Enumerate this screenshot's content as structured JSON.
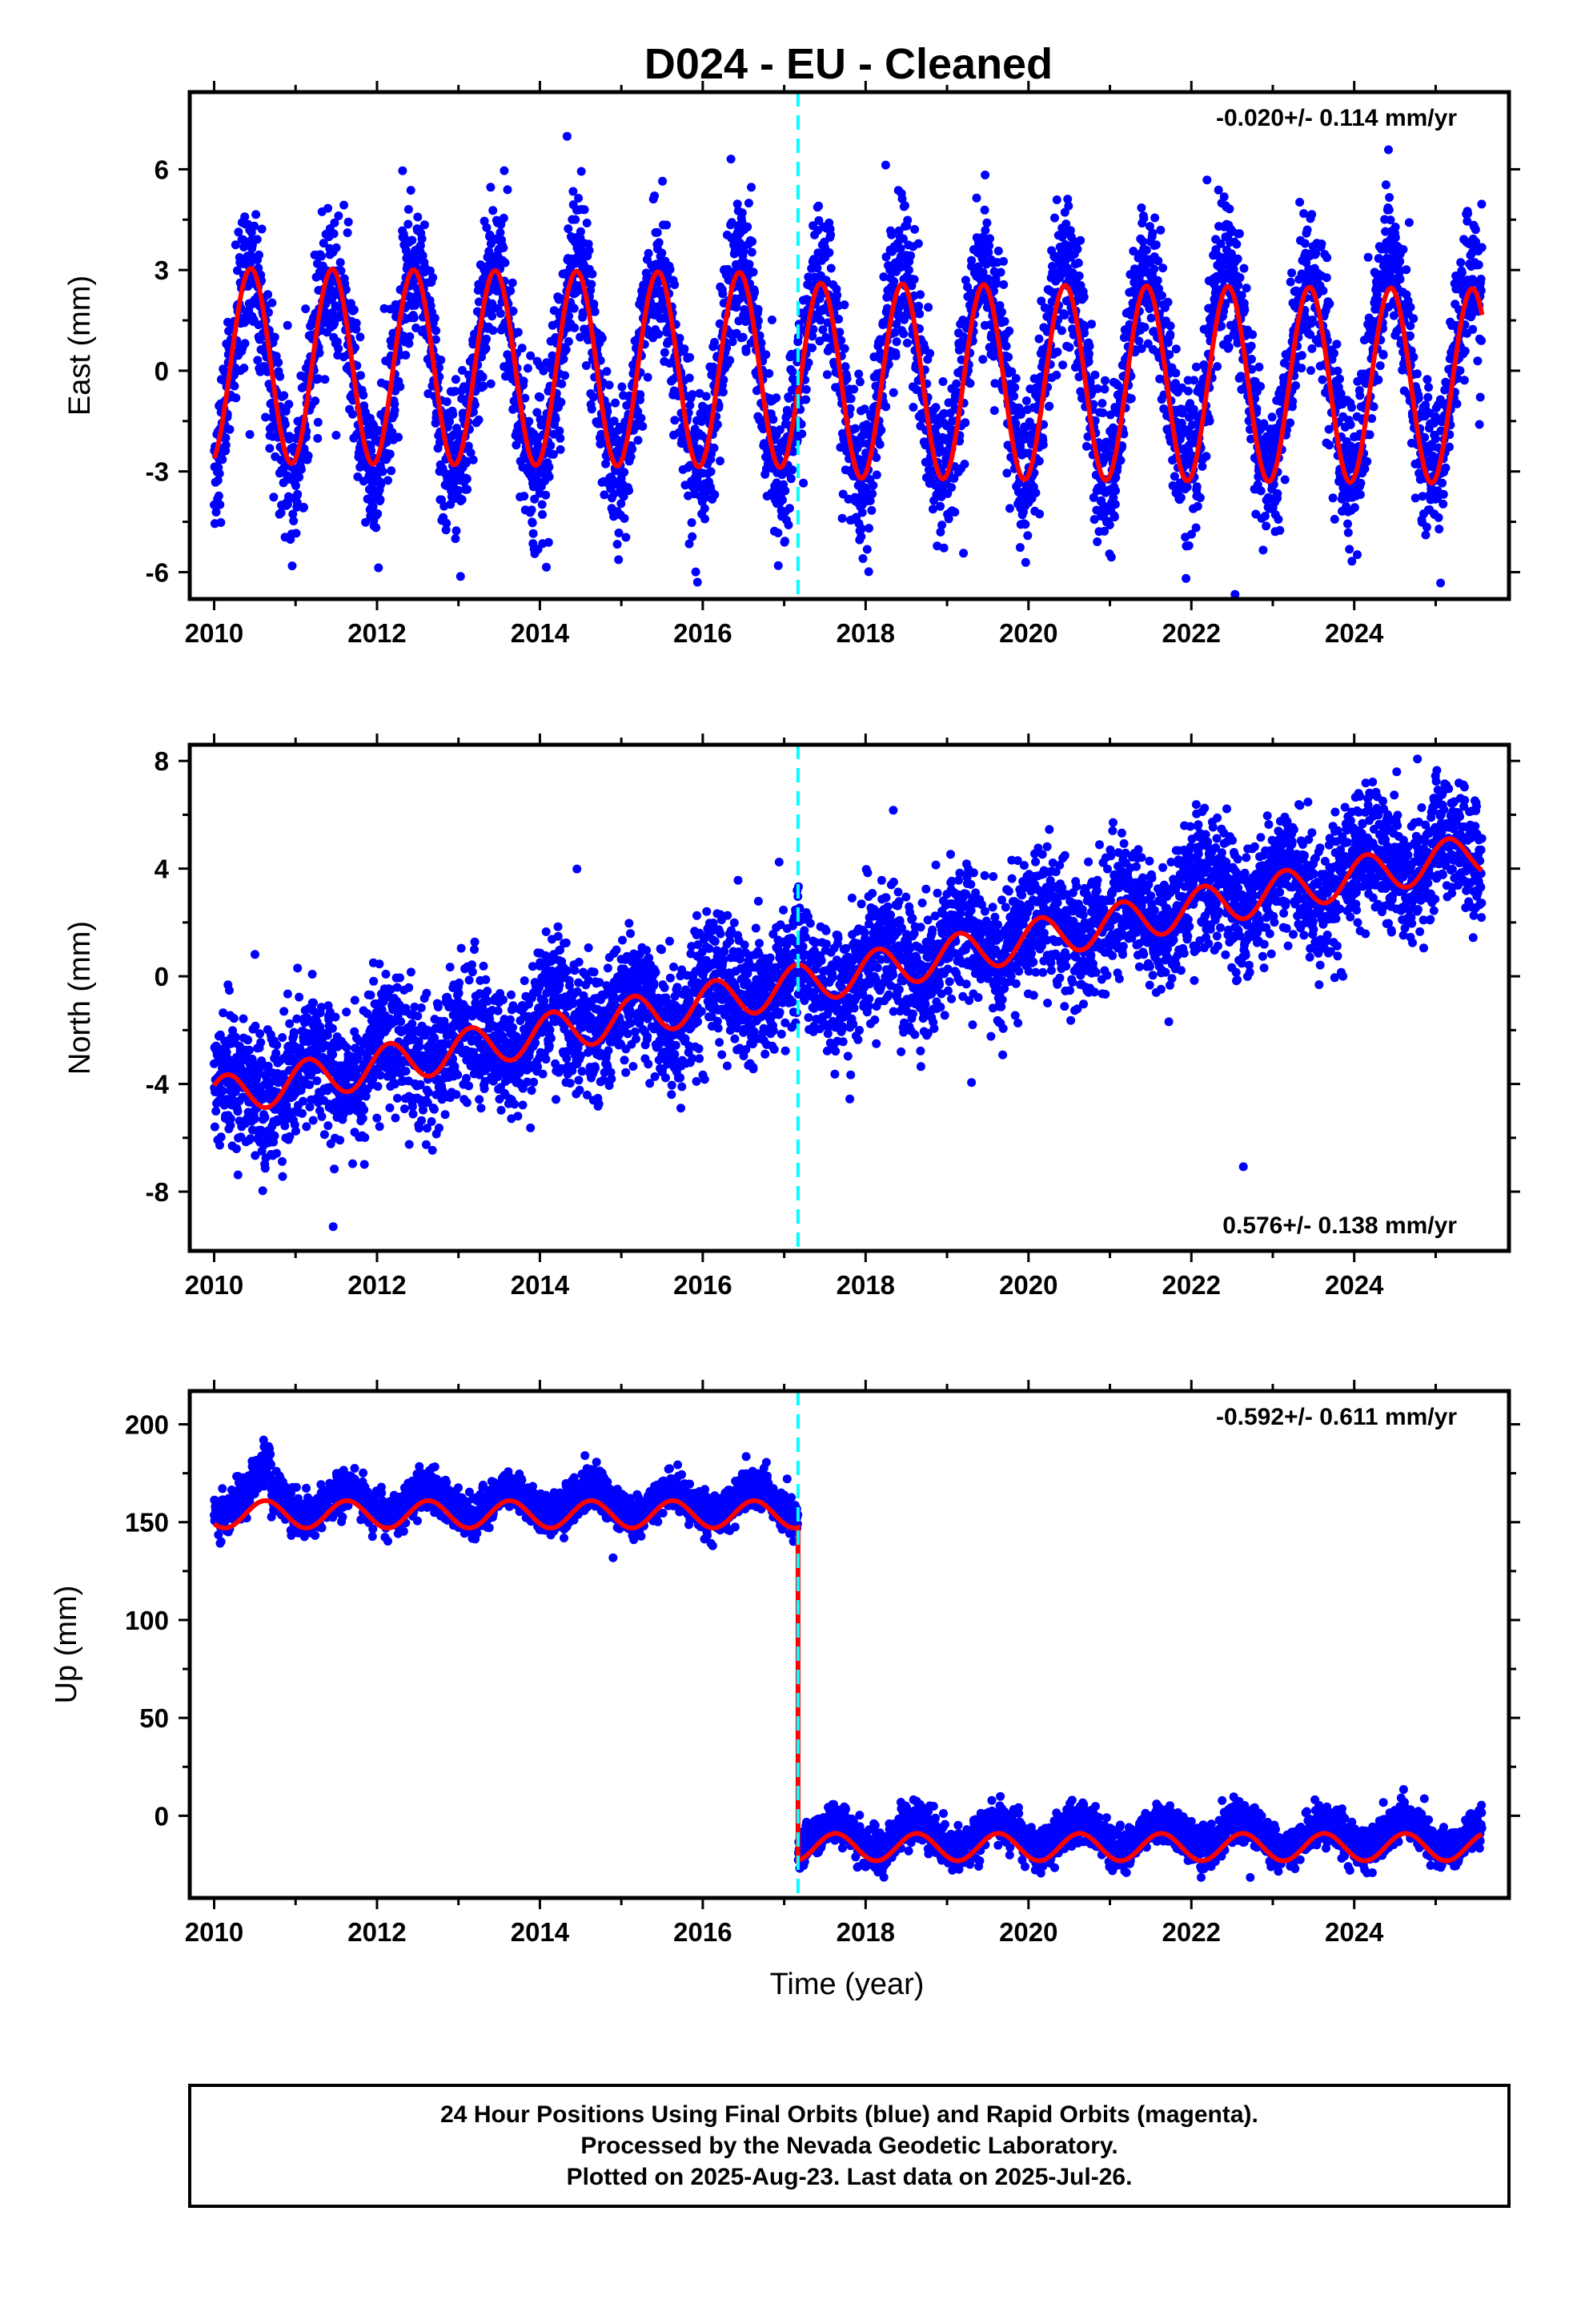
{
  "chart_data": [
    {
      "type": "scatter",
      "title": "D024  - EU - Cleaned",
      "ylabel": "East (mm)",
      "xlabel": "",
      "xlim": [
        2009.7,
        2025.9
      ],
      "ylim": [
        -6.8,
        8.3
      ],
      "xticks": [
        2010,
        2012,
        2014,
        2016,
        2018,
        2020,
        2022,
        2024
      ],
      "xtick_labels": [
        "2010",
        "2012",
        "2014",
        "2016",
        "2018",
        "2020",
        "2022",
        "2024"
      ],
      "yticks": [
        -6,
        -3,
        0,
        3,
        6
      ],
      "ytick_labels": [
        "-6",
        "-3",
        "0",
        "3",
        "6"
      ],
      "rate_text": "-0.020+/- 0.114 mm/yr",
      "rate_position": "top-right",
      "break_epoch": 2017.17,
      "series": [
        {
          "kind": "daily positions (final orbits)",
          "color": "#0000ff",
          "time_range": [
            2010.0,
            2025.57
          ],
          "annual_amplitude_mm": 3.0,
          "peak_phase_year": 0.45,
          "scatter_sd_mm": 1.1
        },
        {
          "kind": "model fit",
          "color": "#ff0000",
          "time_range": [
            2010.0,
            2025.57
          ],
          "rate_mm_per_yr": -0.02,
          "annual_amplitude_mm": 2.9,
          "offset_at_break_mm": -0.3
        }
      ]
    },
    {
      "type": "scatter",
      "title": "",
      "ylabel": "North (mm)",
      "xlabel": "",
      "xlim": [
        2009.7,
        2025.9
      ],
      "ylim": [
        -10.2,
        8.6
      ],
      "xticks": [
        2010,
        2012,
        2014,
        2016,
        2018,
        2020,
        2022,
        2024
      ],
      "xtick_labels": [
        "2010",
        "2012",
        "2014",
        "2016",
        "2018",
        "2020",
        "2022",
        "2024"
      ],
      "yticks": [
        -8,
        -4,
        0,
        4,
        8
      ],
      "ytick_labels": [
        "-8",
        "-4",
        "0",
        "4",
        "8"
      ],
      "rate_text": "0.576+/- 0.138 mm/yr",
      "rate_position": "bottom-right",
      "break_epoch": 2017.17,
      "series": [
        {
          "kind": "daily positions (final orbits)",
          "color": "#0000ff",
          "time_range": [
            2010.0,
            2025.57
          ],
          "start_value_mm": -4.3,
          "end_value_mm": 4.8,
          "annual_amplitude_mm": 0.8,
          "scatter_sd_mm": 1.2
        },
        {
          "kind": "model fit",
          "color": "#ff0000",
          "time_range": [
            2010.0,
            2025.57
          ],
          "start_value_mm": -4.5,
          "end_value_mm": 4.6,
          "annual_amplitude_mm": 0.75
        }
      ]
    },
    {
      "type": "scatter",
      "title": "",
      "ylabel": "Up (mm)",
      "xlabel": "Time (year)",
      "xlim": [
        2009.7,
        2025.9
      ],
      "ylim": [
        -42,
        217
      ],
      "xticks": [
        2010,
        2012,
        2014,
        2016,
        2018,
        2020,
        2022,
        2024
      ],
      "xtick_labels": [
        "2010",
        "2012",
        "2014",
        "2016",
        "2018",
        "2020",
        "2022",
        "2024"
      ],
      "yticks": [
        0,
        50,
        100,
        150,
        200
      ],
      "ytick_labels": [
        "0",
        "50",
        "100",
        "150",
        "200"
      ],
      "rate_text": "-0.592+/- 0.611 mm/yr",
      "rate_position": "top-right",
      "break_epoch": 2017.17,
      "series": [
        {
          "kind": "daily positions (final orbits)",
          "color": "#0000ff",
          "time_range": [
            2010.0,
            2025.57
          ],
          "level_before_break_mm": 160,
          "level_after_break_mm": -10,
          "annual_amplitude_mm": 7,
          "scatter_sd_mm": 5
        },
        {
          "kind": "model fit",
          "color": "#ff0000",
          "time_range": [
            2010.0,
            2025.57
          ],
          "level_before_break_mm": 159,
          "level_after_break_mm": -11,
          "annual_amplitude_mm": 7,
          "value_at_start_mm": 154,
          "value_just_before_break_mm": 149,
          "value_just_after_break_mm": -17,
          "value_at_end_mm": -8
        }
      ]
    }
  ],
  "footer": {
    "line1": "24 Hour Positions Using Final Orbits (blue) and Rapid Orbits (magenta).",
    "line2": "Processed by the Nevada Geodetic Laboratory.",
    "line3": "Plotted on 2025-Aug-23. Last data on 2025-Jul-26."
  },
  "colors": {
    "points": "#0000ff",
    "fit": "#ff0000",
    "break_line": "#00ffff",
    "frame": "#000000"
  }
}
